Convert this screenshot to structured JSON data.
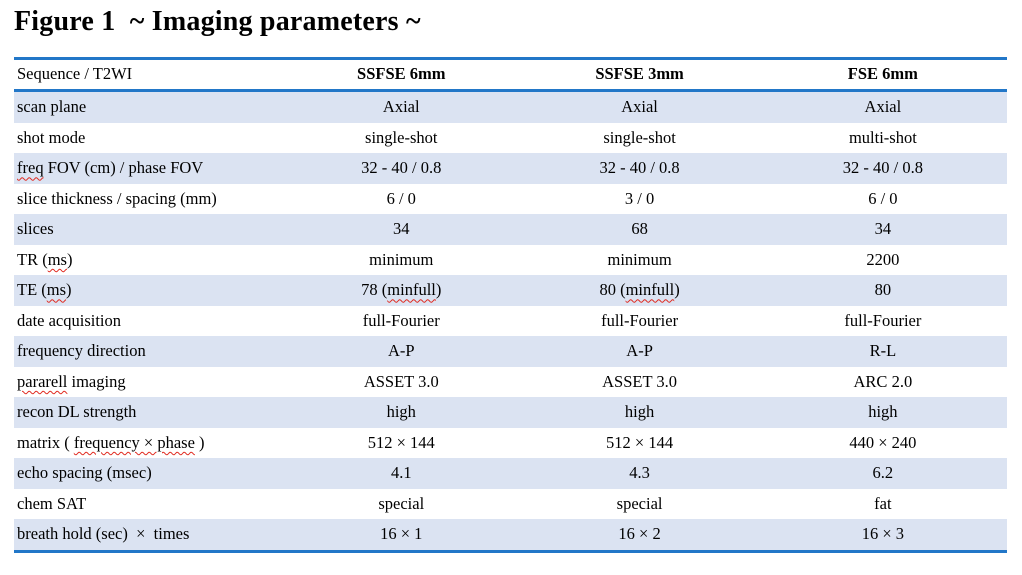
{
  "title": "Figure 1  ~ Imaging parameters ~",
  "table": {
    "columns": [
      "Sequence / T2WI",
      "SSFSE 6mm",
      "SSFSE 3mm",
      "FSE 6mm"
    ],
    "rows": [
      {
        "cells": [
          "scan plane",
          "Axial",
          "Axial",
          "Axial"
        ]
      },
      {
        "cells": [
          "shot mode",
          "single-shot",
          "single-shot",
          "multi-shot"
        ]
      },
      {
        "cells": [
          "freq FOV (cm) / phase FOV",
          "32 - 40 / 0.8",
          "32 - 40 / 0.8",
          "32 - 40 / 0.8"
        ],
        "misspelled": {
          "0": [
            "freq"
          ]
        }
      },
      {
        "cells": [
          "slice thickness / spacing (mm)",
          "6 / 0",
          "3 / 0",
          "6 / 0"
        ]
      },
      {
        "cells": [
          "slices",
          "34",
          "68",
          "34"
        ]
      },
      {
        "cells": [
          "TR (ms)",
          "minimum",
          "minimum",
          "2200"
        ],
        "misspelled": {
          "0": [
            "ms"
          ]
        }
      },
      {
        "cells": [
          "TE (ms)",
          "78 (minfull)",
          "80 (minfull)",
          "80"
        ],
        "misspelled": {
          "0": [
            "ms"
          ],
          "1": [
            "minfull"
          ],
          "2": [
            "minfull"
          ]
        }
      },
      {
        "cells": [
          "date acquisition",
          "full-Fourier",
          "full-Fourier",
          "full-Fourier"
        ]
      },
      {
        "cells": [
          "frequency direction",
          "A-P",
          "A-P",
          "R-L"
        ]
      },
      {
        "cells": [
          "pararell imaging",
          "ASSET 3.0",
          "ASSET 3.0",
          "ARC 2.0"
        ],
        "misspelled": {
          "0": [
            "pararell"
          ]
        }
      },
      {
        "cells": [
          "recon DL strength",
          "high",
          "high",
          "high"
        ]
      },
      {
        "cells": [
          "matrix ( frequency × phase )",
          "512 × 144",
          "512 × 144",
          "440 × 240"
        ],
        "misspelled": {
          "0": [
            "frequency × phase"
          ]
        }
      },
      {
        "cells": [
          "echo spacing (msec)",
          "4.1",
          "4.3",
          "6.2"
        ]
      },
      {
        "cells": [
          "chem SAT",
          "special",
          "special",
          "fat"
        ]
      },
      {
        "cells": [
          "breath hold (sec)  ×  times",
          "16 × 1",
          "16 × 2",
          "16 × 3"
        ]
      }
    ]
  },
  "colors": {
    "rule_blue": "#2277c8",
    "row_band": "#dbe3f2",
    "squiggle_red": "#e0281e",
    "text": "#000000"
  }
}
